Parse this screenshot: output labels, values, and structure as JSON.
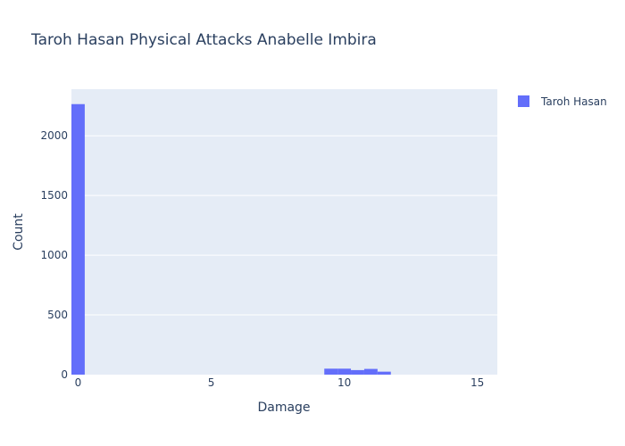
{
  "chart_data": {
    "type": "bar",
    "title": "Taroh Hasan Physical Attacks Anabelle Imbira",
    "xlabel": "Damage",
    "ylabel": "Count",
    "xlim": [
      -0.25,
      15.75
    ],
    "ylim": [
      0,
      2390
    ],
    "x_ticks": [
      0,
      5,
      10,
      15
    ],
    "y_ticks": [
      0,
      500,
      1000,
      1500,
      2000
    ],
    "bin_width": 0.5,
    "series": [
      {
        "name": "Taroh Hasan",
        "color": "#636efa",
        "bins": [
          {
            "x": 0,
            "count": 2265
          },
          {
            "x": 9.5,
            "count": 50
          },
          {
            "x": 10,
            "count": 50
          },
          {
            "x": 10.5,
            "count": 38
          },
          {
            "x": 11,
            "count": 48
          },
          {
            "x": 11.5,
            "count": 25
          }
        ]
      }
    ],
    "grid": true,
    "legend_position": "top-right"
  }
}
